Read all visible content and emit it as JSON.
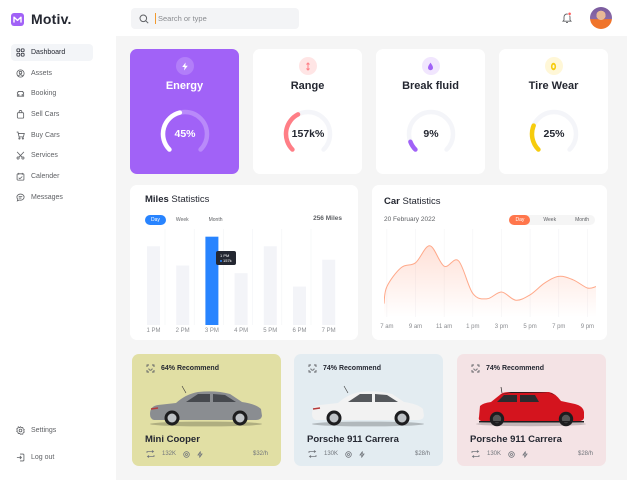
{
  "app": {
    "name": "Motiv.",
    "logo_color": "#a162f7"
  },
  "sidebar": {
    "items": [
      {
        "label": "Dashboard",
        "icon": "grid-icon",
        "active": true
      },
      {
        "label": "Assets",
        "icon": "user-circle-icon"
      },
      {
        "label": "Booking",
        "icon": "car-icon"
      },
      {
        "label": "Sell Cars",
        "icon": "shopping-bag-icon"
      },
      {
        "label": "Buy Cars",
        "icon": "cart-icon"
      },
      {
        "label": "Services",
        "icon": "scissors-icon"
      },
      {
        "label": "Calender",
        "icon": "calendar-icon"
      },
      {
        "label": "Messages",
        "icon": "chat-icon"
      }
    ],
    "bottom": [
      {
        "label": "Settings",
        "icon": "gear-icon"
      },
      {
        "label": "Log out",
        "icon": "logout-icon"
      }
    ]
  },
  "topbar": {
    "search_placeholder": "Search or type",
    "notification_dot_color": "#ff5a5a"
  },
  "stats": [
    {
      "title": "Energy",
      "value": "45%",
      "percent": 45,
      "icon": "lightning-icon",
      "bg": "#a162f7",
      "arc": "#ffffff",
      "track": "#b98afa",
      "icon_bg": "#b27ef9",
      "icon_color": "#ffffff",
      "text_color": "#ffffff"
    },
    {
      "title": "Range",
      "value": "157k%",
      "percent": 40,
      "icon": "arrows-vertical-icon",
      "bg": "#ffffff",
      "arc": "#ff7e86",
      "track": "#f4f5f9",
      "icon_bg": "#ffe5e5",
      "icon_color": "#ff7e86",
      "text_color": "#242731"
    },
    {
      "title": "Break fluid",
      "value": "9%",
      "percent": 9,
      "icon": "droplet-icon",
      "bg": "#ffffff",
      "arc": "#a162f7",
      "track": "#f4f5f9",
      "icon_bg": "#f1e6fe",
      "icon_color": "#a162f7",
      "text_color": "#242731"
    },
    {
      "title": "Tire Wear",
      "value": "25%",
      "percent": 25,
      "icon": "tire-icon",
      "bg": "#ffffff",
      "arc": "#f6cc0d",
      "track": "#f4f5f9",
      "icon_bg": "#fff7d7",
      "icon_color": "#f6cc0d",
      "text_color": "#242731"
    }
  ],
  "miles": {
    "title_bold": "Miles",
    "title_rest": " Statistics",
    "tabs": [
      "Day",
      "Week",
      "Month"
    ],
    "active_tab": "Day",
    "total": "256 Miles",
    "tooltip": {
      "time": "1 PM",
      "value": "157k"
    },
    "accent": "#2884ff"
  },
  "car_stats": {
    "title_bold": "Car",
    "title_rest": " Statistics",
    "date": "20 February 2022",
    "tabs": [
      "Day",
      "Week",
      "Month"
    ],
    "active_tab": "Day",
    "accent": "#ff764c"
  },
  "chart_data": [
    {
      "type": "bar",
      "title": "Miles Statistics",
      "categories": [
        "1 PM",
        "2 PM",
        "3 PM",
        "4 PM",
        "5 PM",
        "6 PM",
        "7 PM"
      ],
      "values": [
        82,
        62,
        92,
        54,
        82,
        40,
        68
      ],
      "highlight_index": 2,
      "ylim": [
        0,
        100
      ],
      "grid": true
    },
    {
      "type": "area",
      "title": "Car Statistics",
      "categories": [
        "7 am",
        "9 am",
        "11 am",
        "1 pm",
        "3 pm",
        "5 pm",
        "7 pm",
        "9 pm"
      ],
      "x": [
        6,
        7,
        8,
        9,
        10,
        11,
        12,
        13,
        14,
        15,
        16,
        17,
        18,
        19,
        20,
        21,
        22
      ],
      "values": [
        5,
        30,
        58,
        65,
        90,
        60,
        68,
        20,
        12,
        22,
        10,
        18,
        35,
        45,
        40,
        28,
        30
      ],
      "ylim": [
        0,
        100
      ],
      "grid": true
    }
  ],
  "recommendations": [
    {
      "recommend": "64% Recommend",
      "name": "Mini Cooper",
      "mileage": "132K",
      "price": "$32/h",
      "bg": "#e1dfa4",
      "car_color": "#8a8d91"
    },
    {
      "recommend": "74% Recommend",
      "name": "Porsche 911 Carrera",
      "mileage": "130K",
      "price": "$28/h",
      "bg": "#e3ecf1",
      "car_color": "#f2f2f2"
    },
    {
      "recommend": "74% Recommend",
      "name": "Porsche 911 Carrera",
      "mileage": "130K",
      "price": "$28/h",
      "bg": "#f4e3e5",
      "car_color": "#d4141e"
    }
  ]
}
